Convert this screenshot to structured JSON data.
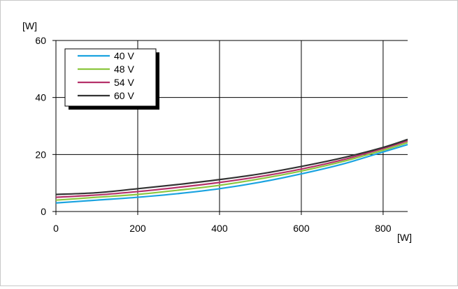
{
  "chart_data": {
    "type": "line",
    "title": "",
    "xlabel": "[W]",
    "ylabel": "[W]",
    "xlim": [
      0,
      860
    ],
    "ylim": [
      0,
      60
    ],
    "xticks": [
      "0",
      "200",
      "400",
      "600",
      "800"
    ],
    "yticks": [
      "0",
      "20",
      "40",
      "60"
    ],
    "grid": true,
    "legend_position": "top-left",
    "x": [
      0,
      100,
      200,
      300,
      400,
      500,
      600,
      700,
      800,
      860
    ],
    "series": [
      {
        "name": "40 V",
        "color": "#1aa3e0",
        "values": [
          3.0,
          4.0,
          5.0,
          6.3,
          8.0,
          10.3,
          13.2,
          16.6,
          20.9,
          23.5
        ]
      },
      {
        "name": "48 V",
        "color": "#8cc63f",
        "values": [
          4.0,
          5.0,
          6.0,
          7.5,
          9.2,
          11.5,
          14.2,
          17.5,
          21.5,
          24.2
        ]
      },
      {
        "name": "54 V",
        "color": "#b5316a",
        "values": [
          5.0,
          5.8,
          7.0,
          8.5,
          10.2,
          12.3,
          14.9,
          18.1,
          22.1,
          24.8
        ]
      },
      {
        "name": "60 V",
        "color": "#333333",
        "values": [
          6.0,
          6.6,
          8.0,
          9.5,
          11.2,
          13.2,
          15.8,
          18.8,
          22.5,
          25.3
        ]
      }
    ]
  }
}
